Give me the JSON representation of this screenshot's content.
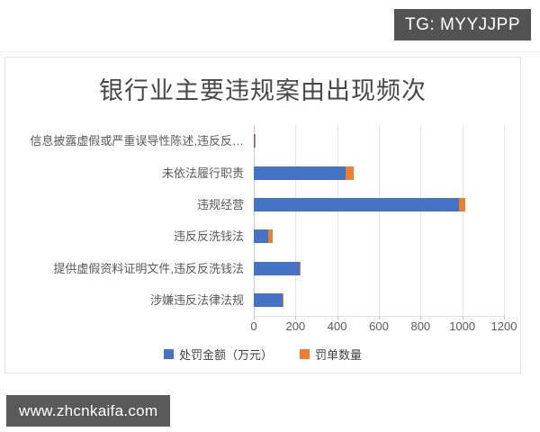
{
  "page": {
    "tg_badge": "TG: MYYJJPP",
    "watermark": "www.zhcnkaifa.com"
  },
  "colors": {
    "penalty_amount": "#4472C4",
    "ticket_count": "#ED7D31",
    "badge_background": "#535353",
    "gridline": "#e5e5e5"
  },
  "chart_data": {
    "type": "bar",
    "orientation": "horizontal",
    "stacked": true,
    "title": "银行业主要违规案由出现频次",
    "categories": [
      "信息披露虚假或严重误导性陈述,违反反…",
      "未依法履行职责",
      "违规经营",
      "违反反洗钱法",
      "提供虚假资料证明文件,违反反洗钱法",
      "涉嫌违反法律法规"
    ],
    "series": [
      {
        "name": "处罚金额（万元）",
        "color": "#4472C4",
        "values": [
          3,
          440,
          985,
          70,
          220,
          140
        ]
      },
      {
        "name": "罚单数量",
        "color": "#ED7D31",
        "values": [
          2,
          40,
          30,
          20,
          4,
          3
        ]
      }
    ],
    "xlim": [
      0,
      1200
    ],
    "xticks": [
      0,
      200,
      400,
      600,
      800,
      1000,
      1200
    ],
    "grid": "vertical",
    "legend_position": "bottom"
  }
}
